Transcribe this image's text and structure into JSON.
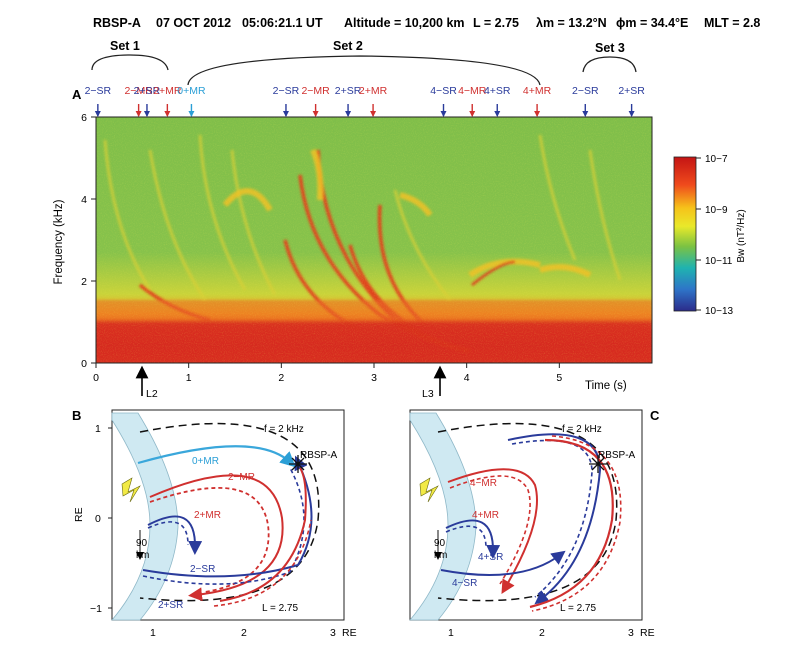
{
  "header": {
    "sat": "RBSP-A",
    "date": "07 OCT 2012",
    "time": "05:06:21.1 UT",
    "altitude": "Altitude = 10,200 km",
    "L": "L = 2.75",
    "lambda": "λm = 13.2°N",
    "phi": "ϕm = 34.4°E",
    "mlt": "MLT = 2.8"
  },
  "sets": [
    "Set 1",
    "Set 2",
    "Set 3"
  ],
  "panel_labels": [
    "A",
    "B",
    "C"
  ],
  "markers": [
    {
      "t": 0.02,
      "label": "2−SR",
      "color": "#2a3b9b"
    },
    {
      "t": 0.46,
      "label": "2−MR",
      "color": "#d0302f"
    },
    {
      "t": 0.55,
      "label": "2+SR",
      "color": "#2a3b9b"
    },
    {
      "t": 0.77,
      "label": "2+MR",
      "color": "#d0302f"
    },
    {
      "t": 1.03,
      "label": "0+MR",
      "color": "#2b9fd6"
    },
    {
      "t": 2.05,
      "label": "2−SR",
      "color": "#2a3b9b"
    },
    {
      "t": 2.37,
      "label": "2−MR",
      "color": "#d0302f"
    },
    {
      "t": 2.72,
      "label": "2+SR",
      "color": "#2a3b9b"
    },
    {
      "t": 2.99,
      "label": "2+MR",
      "color": "#d0302f"
    },
    {
      "t": 3.75,
      "label": "4−SR",
      "color": "#2a3b9b"
    },
    {
      "t": 4.06,
      "label": "4−MR",
      "color": "#d0302f"
    },
    {
      "t": 4.33,
      "label": "4+SR",
      "color": "#2a3b9b"
    },
    {
      "t": 4.76,
      "label": "4+MR",
      "color": "#d0302f"
    },
    {
      "t": 5.28,
      "label": "2−SR",
      "color": "#2a3b9b"
    },
    {
      "t": 5.78,
      "label": "2+SR",
      "color": "#2a3b9b"
    }
  ],
  "spectrogram": {
    "xlabel": "Time (s)",
    "ylabel": "Frequency (kHz)",
    "xticks": [
      "0",
      "1",
      "2",
      "3",
      "4",
      "5"
    ],
    "yticks": [
      "0",
      "2",
      "4",
      "6"
    ],
    "arrows": [
      "L2",
      "L3"
    ],
    "colorbar_ticks": [
      "10−7",
      "10−9",
      "10−11",
      "10−13"
    ],
    "colorbar_label": "Bw (nT²/Hz)",
    "xlim": [
      0,
      6
    ],
    "ylim": [
      0,
      6
    ]
  },
  "panel_b": {
    "freq": "f = 2 kHz",
    "sat": "RBSP-A",
    "L": "L = 2.75",
    "km": [
      "90",
      "km"
    ],
    "labels": [
      "0+MR",
      "2−MR",
      "2+MR",
      "2−SR",
      "2+SR"
    ],
    "xticks": [
      "1",
      "2",
      "3"
    ],
    "yticks": [
      "1",
      "0",
      "−1"
    ],
    "xunit": "RE",
    "yunit": "RE"
  },
  "panel_c": {
    "freq": "f = 2 kHz",
    "sat": "RBSP-A",
    "L": "L = 2.75",
    "km": [
      "90",
      "km"
    ],
    "labels": [
      "4−MR",
      "4+MR",
      "4+SR",
      "4−SR"
    ],
    "xticks": [
      "1",
      "2",
      "3"
    ],
    "xunit": "RE"
  }
}
